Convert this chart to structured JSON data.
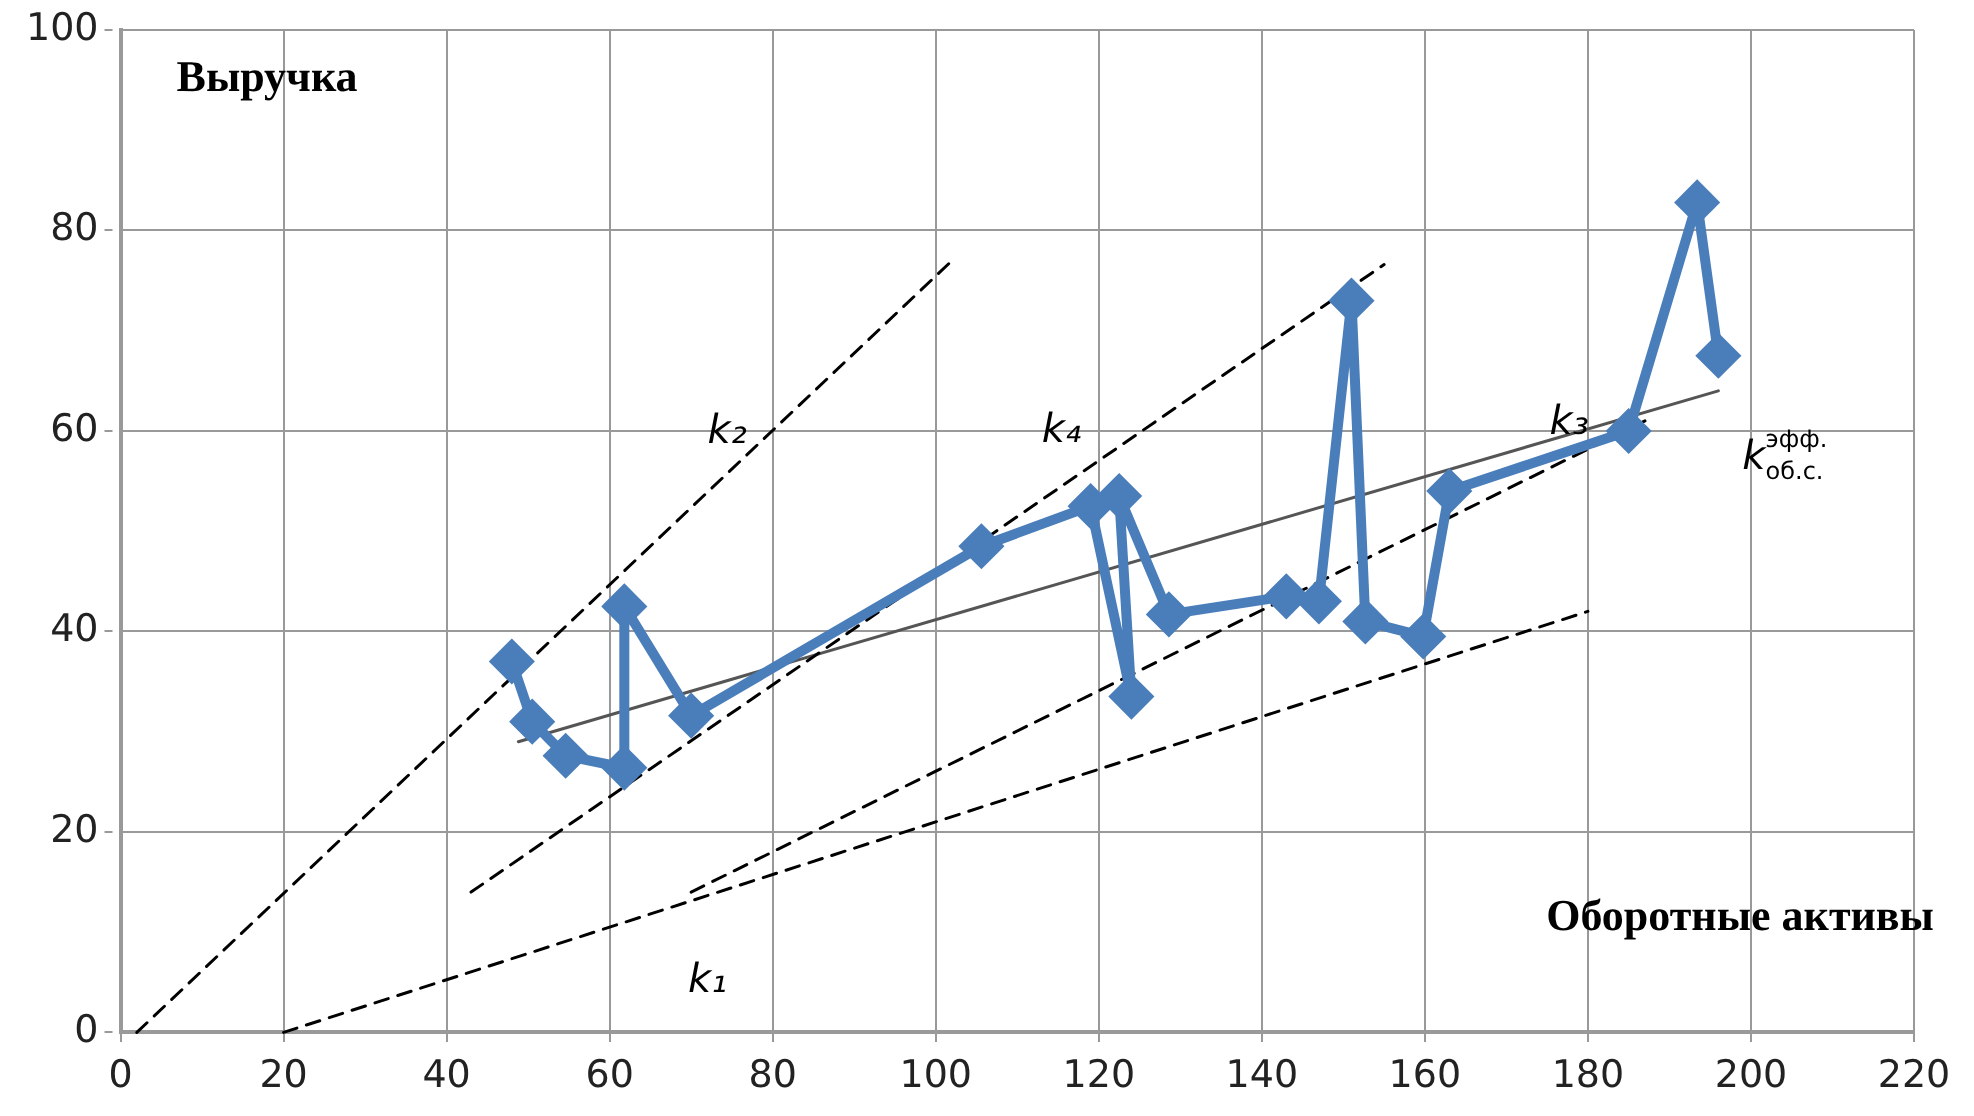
{
  "chart_data": {
    "type": "line",
    "xlabel": "Оборотные активы",
    "ylabel": "Выручка",
    "xlim": [
      0,
      220
    ],
    "xticks": [
      0,
      20,
      40,
      60,
      80,
      100,
      120,
      140,
      160,
      180,
      200,
      220
    ],
    "ylim": [
      0,
      100
    ],
    "yticks": [
      0,
      20,
      40,
      60,
      80,
      100
    ],
    "grid": true,
    "legend": false,
    "series": [
      {
        "color": "#4a7ebb",
        "marker": "diamond",
        "line_style": "solid",
        "x": [
          48,
          50.5,
          54.6,
          61.8,
          61.8,
          70,
          105.6,
          119,
          124,
          122.5,
          128.6,
          143,
          147,
          151,
          152.7,
          159.8,
          163,
          185,
          193.4,
          196
        ],
        "values": [
          37,
          31,
          27.6,
          26.4,
          42.5,
          31.6,
          48.5,
          52.5,
          33.5,
          53.5,
          41.7,
          43.5,
          43,
          73,
          41,
          39.5,
          54,
          60,
          82.8,
          67.5
        ]
      },
      {
        "name": "k₂",
        "color": "#000000",
        "marker": "none",
        "line_style": "dashed",
        "x": [
          2,
          102
        ],
        "values": [
          0,
          77
        ]
      },
      {
        "name": "k₁",
        "color": "#000000",
        "marker": "none",
        "line_style": "dashed",
        "x": [
          20,
          180
        ],
        "values": [
          0,
          42
        ]
      },
      {
        "name": "k₄",
        "color": "#000000",
        "marker": "none",
        "line_style": "dashed",
        "x": [
          43,
          155
        ],
        "values": [
          14,
          76.6
        ]
      },
      {
        "name": "k₃",
        "color": "#000000",
        "marker": "none",
        "line_style": "dashed",
        "x": [
          70,
          187
        ],
        "values": [
          14,
          61
        ]
      },
      {
        "name": "k$^{эфф.}$$_{об.с.}$",
        "color": "#555555",
        "marker": "none",
        "line_style": "solid",
        "x": [
          48.8,
          196
        ],
        "values": [
          29,
          64
        ]
      }
    ]
  }
}
